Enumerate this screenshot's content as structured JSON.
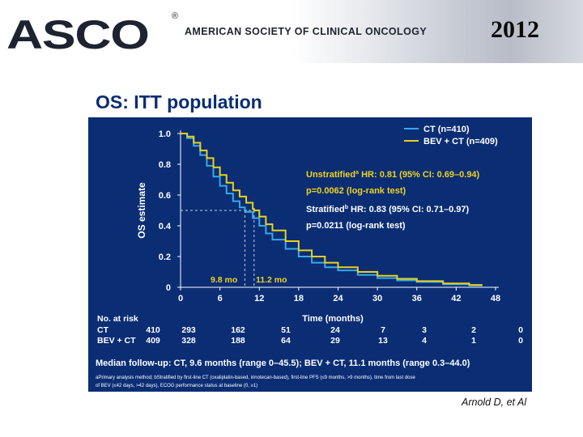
{
  "header": {
    "logo_text": "ASCO",
    "registered": "®",
    "org_name": "AMERICAN SOCIETY OF CLINICAL ONCOLOGY",
    "year": "2012",
    "colors": {
      "panel_bg": "#0a2d74",
      "series_ct": "#38a8e8",
      "series_bev": "#e7d21c",
      "annotation": "#f0d31e"
    }
  },
  "slide": {
    "title": "OS: ITT population",
    "credit": "Arnold D, et Al",
    "legend": [
      "CT (n=410)",
      "BEV + CT (n=409)"
    ],
    "annotation_unstrat_prefix": "Unstratified",
    "annotation_unstrat_sup": "a",
    "annotation_unstrat_rest": " HR: 0.81 (95% CI: 0.69–0.94)",
    "annotation_unstrat_p": "p=0.0062 (log-rank test)",
    "annotation_strat_prefix": "Stratified",
    "annotation_strat_sup": "b",
    "annotation_strat_rest": " HR: 0.83 (95% CI: 0.71–0.97)",
    "annotation_strat_p": "p=0.0211 (log-rank test)",
    "median_ct_label": "9.8 mo",
    "median_bev_label": "11.2 mo",
    "risk_title": "No. at risk",
    "risk_rows": [
      {
        "label": "CT",
        "values": [
          "410",
          "293",
          "162",
          "51",
          "24",
          "7",
          "3",
          "2",
          "0"
        ]
      },
      {
        "label": "BEV + CT",
        "values": [
          "409",
          "328",
          "188",
          "64",
          "29",
          "13",
          "4",
          "1",
          "0"
        ]
      }
    ],
    "followup": "Median follow-up: CT, 9.6 months (range 0–45.5); BEV + CT, 11.1 months (range 0.3–44.0)",
    "footnote_1": "aPrimary analysis method; bStratified by first-line CT (oxaliplatin-based, irinotecan-based), first-line PFS (≤9 months, >9 months), time from last dose",
    "footnote_2": "of BEV (≤42 days, >42 days), ECOG performance status at baseline (0, ≥1)"
  },
  "chart_data": {
    "type": "line",
    "title": "OS: ITT population",
    "xlabel": "Time (months)",
    "ylabel": "OS estimate",
    "xlim": [
      0,
      48
    ],
    "ylim": [
      0,
      1
    ],
    "x_ticks": [
      0,
      6,
      12,
      18,
      24,
      30,
      36,
      42,
      48
    ],
    "y_ticks": [
      0,
      0.2,
      0.4,
      0.6,
      0.8,
      1.0
    ],
    "y_tick_labels": [
      "0",
      "0.2",
      "0.4",
      "0.6",
      "0.8",
      "1.0"
    ],
    "legend_position": "top-right",
    "series": [
      {
        "name": "CT (n=410)",
        "median_months": 9.8,
        "x": [
          0,
          1,
          2,
          3,
          4,
          5,
          6,
          7,
          8,
          9,
          9.8,
          10,
          11,
          12,
          13,
          14,
          16,
          18,
          20,
          22,
          24,
          27,
          30,
          33,
          36,
          40,
          44,
          46
        ],
        "y": [
          1.0,
          0.97,
          0.92,
          0.86,
          0.79,
          0.72,
          0.66,
          0.61,
          0.56,
          0.52,
          0.5,
          0.49,
          0.45,
          0.4,
          0.35,
          0.31,
          0.25,
          0.2,
          0.16,
          0.13,
          0.11,
          0.08,
          0.06,
          0.045,
          0.035,
          0.02,
          0.012,
          0.012
        ]
      },
      {
        "name": "BEV + CT (n=409)",
        "median_months": 11.2,
        "x": [
          0,
          1,
          2,
          3,
          4,
          5,
          6,
          7,
          8,
          9,
          10,
          11,
          11.2,
          12,
          13,
          14,
          16,
          18,
          20,
          22,
          24,
          27,
          30,
          33,
          36,
          40,
          44,
          46
        ],
        "y": [
          1.0,
          0.98,
          0.94,
          0.89,
          0.84,
          0.78,
          0.73,
          0.68,
          0.63,
          0.59,
          0.55,
          0.51,
          0.5,
          0.46,
          0.41,
          0.37,
          0.3,
          0.24,
          0.2,
          0.16,
          0.13,
          0.1,
          0.075,
          0.055,
          0.04,
          0.025,
          0.015,
          0.015
        ]
      }
    ]
  }
}
